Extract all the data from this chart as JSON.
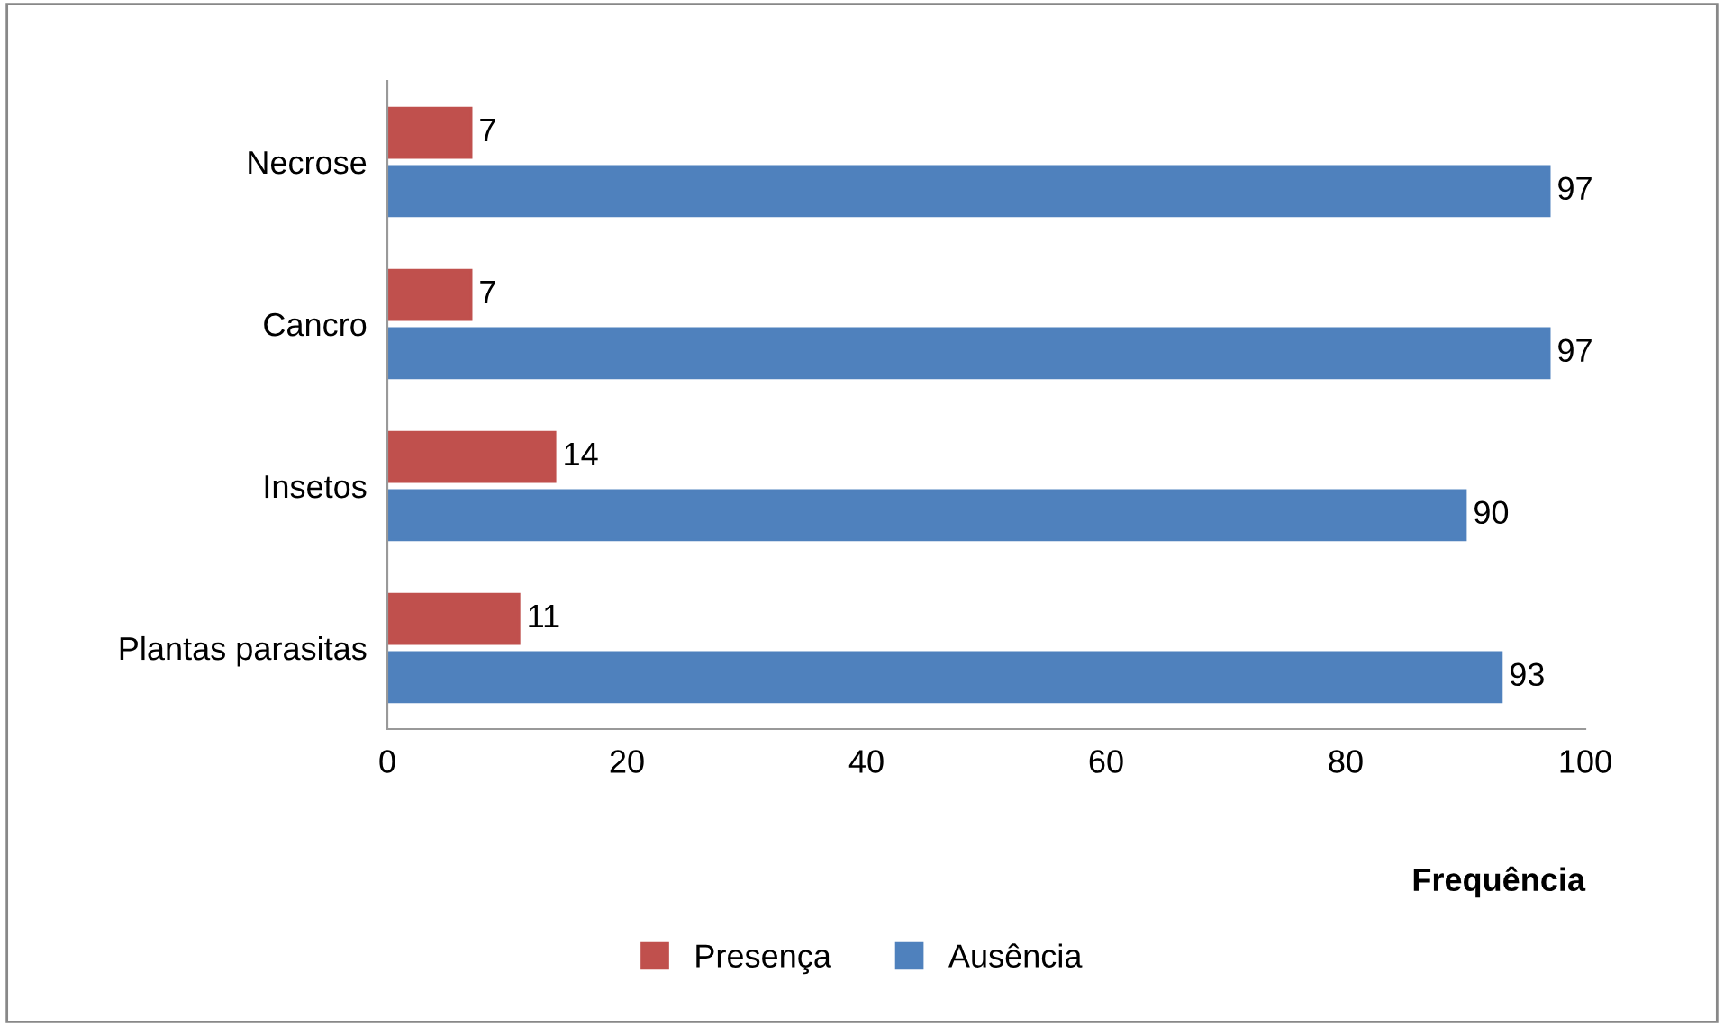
{
  "chart_data": {
    "type": "bar",
    "orientation": "horizontal",
    "xlabel": "Frequência",
    "categories": [
      "Necrose",
      "Cancro",
      "Insetos",
      "Plantas parasitas"
    ],
    "series": [
      {
        "name": "Presença",
        "color": "#c0504d",
        "values": [
          7,
          7,
          14,
          11
        ]
      },
      {
        "name": "Ausência",
        "color": "#4f81bd",
        "values": [
          97,
          97,
          90,
          93
        ]
      }
    ],
    "xlim": [
      0,
      100
    ],
    "xticks": [
      0,
      20,
      40,
      60,
      80,
      100
    ],
    "data_labels": true,
    "grid": false,
    "legend": "bottom"
  }
}
